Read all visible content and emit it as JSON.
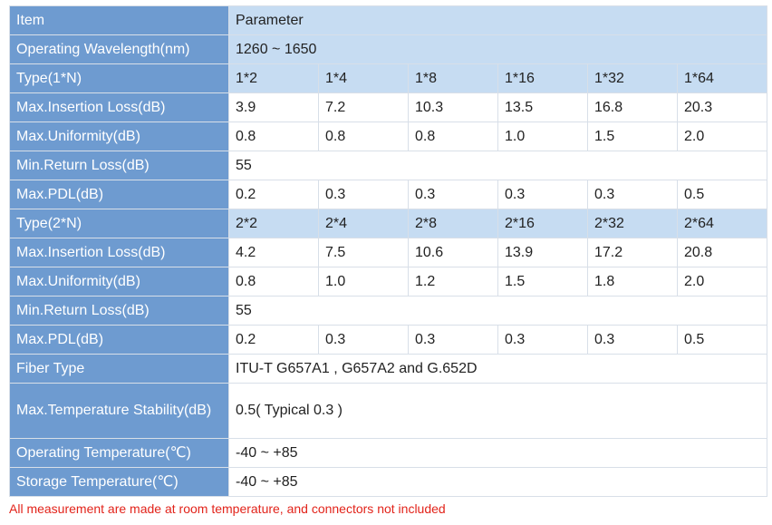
{
  "table": {
    "rows": [
      {
        "label": "Item",
        "values": [
          "Parameter"
        ],
        "highlight": true
      },
      {
        "label": "Operating Wavelength(nm)",
        "values": [
          "1260 ~ 1650"
        ],
        "highlight": true
      },
      {
        "label": "Type(1*N)",
        "values": [
          "1*2",
          "1*4",
          "1*8",
          "1*16",
          "1*32",
          "1*64"
        ],
        "highlight": true
      },
      {
        "label": "Max.Insertion Loss(dB)",
        "values": [
          "3.9",
          "7.2",
          "10.3",
          "13.5",
          "16.8",
          "20.3"
        ]
      },
      {
        "label": "Max.Uniformity(dB)",
        "values": [
          "0.8",
          "0.8",
          "0.8",
          "1.0",
          "1.5",
          "2.0"
        ]
      },
      {
        "label": "Min.Return Loss(dB)",
        "values": [
          "55"
        ]
      },
      {
        "label": "Max.PDL(dB)",
        "values": [
          "0.2",
          "0.3",
          "0.3",
          "0.3",
          "0.3",
          "0.5"
        ]
      },
      {
        "label": "Type(2*N)",
        "values": [
          "2*2",
          "2*4",
          "2*8",
          "2*16",
          "2*32",
          "2*64"
        ],
        "highlight": true
      },
      {
        "label": "Max.Insertion Loss(dB)",
        "values": [
          "4.2",
          "7.5",
          "10.6",
          "13.9",
          "17.2",
          "20.8"
        ]
      },
      {
        "label": "Max.Uniformity(dB)",
        "values": [
          "0.8",
          "1.0",
          "1.2",
          "1.5",
          "1.8",
          "2.0"
        ]
      },
      {
        "label": "Min.Return Loss(dB)",
        "values": [
          "55"
        ]
      },
      {
        "label": "Max.PDL(dB)",
        "values": [
          "0.2",
          "0.3",
          "0.3",
          "0.3",
          "0.3",
          "0.5"
        ]
      },
      {
        "label": "Fiber Type",
        "values": [
          "ITU-T G657A1 , G657A2 and G.652D"
        ]
      },
      {
        "label": "Max.Temperature Stability(dB)",
        "values": [
          "0.5( Typical 0.3 )"
        ],
        "tall": true
      },
      {
        "label": "Operating Temperature(℃)",
        "values": [
          "-40 ~ +85"
        ]
      },
      {
        "label": "Storage Temperature(℃)",
        "values": [
          "-40 ~ +85"
        ]
      }
    ]
  },
  "note": "All measurement are made at room temperature, and connectors not included",
  "colors": {
    "label_bg": "#6e9bd0",
    "highlight_bg": "#c6dcf2",
    "note_text": "#e2231a"
  }
}
